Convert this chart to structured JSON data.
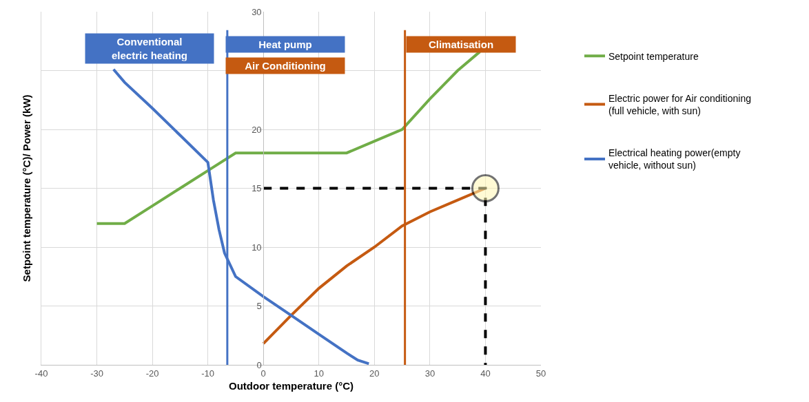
{
  "chart_data": {
    "type": "line",
    "xlabel": "Outdoor temperature (°C)",
    "ylabel": "Setpoint temperature (°C)/ Power (kW)",
    "xlim": [
      -40,
      50
    ],
    "xticks": [
      -40,
      -30,
      -20,
      -10,
      0,
      10,
      20,
      30,
      40,
      50
    ],
    "ylim": [
      0,
      30
    ],
    "yticks": [
      0,
      5,
      10,
      15,
      20,
      {
        "value": 25,
        "label": null
      },
      30
    ],
    "grid": true,
    "legend": "right",
    "line_style": "solid",
    "marker": "none",
    "series": [
      {
        "name": "Setpoint temperature",
        "color": "#70ad47",
        "x": [
          -30,
          -25,
          -20,
          -15,
          -10,
          -5,
          15,
          20,
          25,
          30,
          35,
          39
        ],
        "values": [
          12,
          12,
          13.5,
          15,
          16.5,
          18,
          18,
          19,
          20,
          22.6,
          25,
          26.6
        ]
      },
      {
        "name": "Electric power for Air conditioning (full vehicle, with sun)",
        "color": "#c55a11",
        "x": [
          0,
          5,
          10,
          15,
          20,
          25,
          30,
          35,
          40
        ],
        "values": [
          1.8,
          4.2,
          6.5,
          8.4,
          10,
          11.8,
          13,
          14,
          15
        ]
      },
      {
        "name": "Electrical heating power(empty vehicle, without sun)",
        "color": "#4472c4",
        "x": [
          -27,
          -25,
          -20,
          -15,
          -10,
          -9,
          -8,
          -7,
          -5,
          0,
          5,
          10,
          15,
          17,
          19
        ],
        "values": [
          25.1,
          24,
          21.8,
          19.5,
          17.2,
          14,
          11.5,
          9.5,
          7.5,
          5.8,
          4.2,
          2.6,
          1,
          0.4,
          0.1
        ]
      },
      {
        "color": "#000000",
        "line_style": "dashed",
        "x": [
          0,
          40,
          40
        ],
        "values": [
          15,
          15,
          0
        ]
      },
      {
        "type": "scatter",
        "marker": "circle",
        "color": "#fff6b3",
        "x": [
          40
        ],
        "values": [
          15
        ]
      }
    ],
    "ref_lines": [
      {
        "axis": "x",
        "value": -6.5,
        "color": "#4472c4"
      },
      {
        "axis": "x",
        "value": 25.5,
        "color": "#c55a11"
      }
    ],
    "annotations": [
      "Conventional electric heating",
      "Heat pump",
      "Air Conditioning",
      "Climatisation"
    ]
  }
}
